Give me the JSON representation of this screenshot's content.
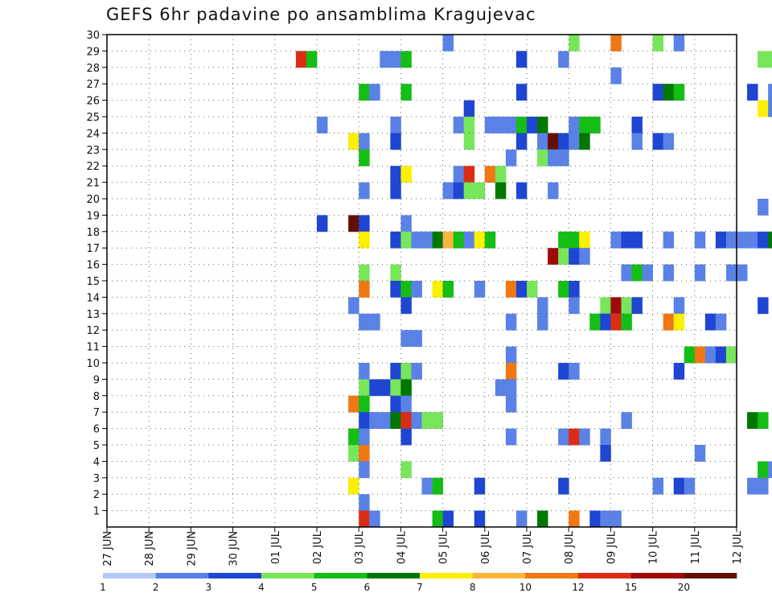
{
  "chart_data": {
    "type": "heatmap",
    "title": "GEFS 6hr padavine po ansamblima Kragujevac",
    "xlabel": "",
    "ylabel": "",
    "x_ticks": [
      "27 JUN",
      "28 JUN",
      "29 JUN",
      "30 JUN",
      "01 JUL",
      "02 JUL",
      "03 JUL",
      "04 JUL",
      "05 JUL",
      "06 JUL",
      "07 JUL",
      "08 JUL",
      "09 JUL",
      "10 JUL",
      "11 JUL",
      "12 JUL"
    ],
    "y_ticks": [
      1,
      2,
      3,
      4,
      5,
      6,
      7,
      8,
      9,
      10,
      11,
      12,
      13,
      14,
      15,
      16,
      17,
      18,
      19,
      20,
      21,
      22,
      23,
      24,
      25,
      26,
      27,
      28,
      29,
      30
    ],
    "xlim": [
      0,
      15
    ],
    "ylim": [
      0,
      30
    ],
    "x_step_hours": 6,
    "grid": true,
    "colorbar": {
      "labels": [
        "1",
        "2",
        "3",
        "4",
        "5",
        "6",
        "7",
        "8",
        "10",
        "12",
        "15",
        "20"
      ],
      "colors": [
        "#b4c8f8",
        "#5a82e6",
        "#1e46d2",
        "#78e65a",
        "#14be14",
        "#007800",
        "#faf000",
        "#fab43c",
        "#f07814",
        "#dc2d14",
        "#a00a0a",
        "#641000"
      ]
    },
    "cells": [
      [
        32,
        30,
        1
      ],
      [
        44,
        30,
        3
      ],
      [
        48,
        30,
        8
      ],
      [
        52,
        30,
        3
      ],
      [
        54,
        30,
        1
      ],
      [
        64,
        30,
        5
      ],
      [
        18,
        29,
        9
      ],
      [
        19,
        29,
        4
      ],
      [
        26,
        29,
        1
      ],
      [
        27,
        29,
        1
      ],
      [
        28,
        29,
        4
      ],
      [
        39,
        29,
        2
      ],
      [
        43,
        29,
        1
      ],
      [
        62,
        29,
        3
      ],
      [
        63,
        29,
        3
      ],
      [
        48,
        28,
        1
      ],
      [
        24,
        27,
        4
      ],
      [
        25,
        27,
        1
      ],
      [
        28,
        27,
        4
      ],
      [
        39,
        27,
        2
      ],
      [
        52,
        27,
        2
      ],
      [
        53,
        27,
        5
      ],
      [
        54,
        27,
        4
      ],
      [
        61,
        27,
        2
      ],
      [
        63,
        27,
        1
      ],
      [
        68,
        27,
        5
      ],
      [
        69,
        27,
        2
      ],
      [
        34,
        26,
        2
      ],
      [
        62,
        26,
        6
      ],
      [
        63,
        26,
        1
      ],
      [
        66,
        26,
        7
      ],
      [
        20,
        25,
        1
      ],
      [
        27,
        25,
        1
      ],
      [
        33,
        25,
        1
      ],
      [
        34,
        25,
        3
      ],
      [
        36,
        25,
        1
      ],
      [
        37,
        25,
        1
      ],
      [
        38,
        25,
        1
      ],
      [
        39,
        25,
        4
      ],
      [
        40,
        25,
        2
      ],
      [
        41,
        25,
        5
      ],
      [
        44,
        25,
        1
      ],
      [
        45,
        25,
        4
      ],
      [
        46,
        25,
        4
      ],
      [
        50,
        25,
        2
      ],
      [
        66,
        25,
        1
      ],
      [
        67,
        25,
        2
      ],
      [
        23,
        24,
        6
      ],
      [
        24,
        24,
        1
      ],
      [
        27,
        24,
        2
      ],
      [
        34,
        24,
        3
      ],
      [
        39,
        24,
        2
      ],
      [
        41,
        24,
        1
      ],
      [
        42,
        24,
        11
      ],
      [
        43,
        24,
        2
      ],
      [
        44,
        24,
        1
      ],
      [
        45,
        24,
        5
      ],
      [
        50,
        24,
        1
      ],
      [
        52,
        24,
        2
      ],
      [
        53,
        24,
        1
      ],
      [
        24,
        23,
        4
      ],
      [
        38,
        23,
        1
      ],
      [
        41,
        23,
        3
      ],
      [
        42,
        23,
        1
      ],
      [
        43,
        23,
        1
      ],
      [
        27,
        22,
        2
      ],
      [
        28,
        22,
        6
      ],
      [
        33,
        22,
        1
      ],
      [
        34,
        22,
        9
      ],
      [
        36,
        22,
        8
      ],
      [
        37,
        22,
        3
      ],
      [
        24,
        21,
        1
      ],
      [
        27,
        21,
        2
      ],
      [
        32,
        21,
        1
      ],
      [
        33,
        21,
        2
      ],
      [
        34,
        21,
        3
      ],
      [
        35,
        21,
        3
      ],
      [
        37,
        21,
        5
      ],
      [
        39,
        21,
        2
      ],
      [
        42,
        21,
        1
      ],
      [
        70,
        21,
        1
      ],
      [
        62,
        20,
        1
      ],
      [
        20,
        19,
        2
      ],
      [
        23,
        19,
        11
      ],
      [
        24,
        19,
        2
      ],
      [
        28,
        19,
        1
      ],
      [
        24,
        18,
        6
      ],
      [
        27,
        18,
        2
      ],
      [
        28,
        18,
        3
      ],
      [
        29,
        18,
        1
      ],
      [
        30,
        18,
        1
      ],
      [
        31,
        18,
        5
      ],
      [
        32,
        18,
        7
      ],
      [
        33,
        18,
        4
      ],
      [
        34,
        18,
        1
      ],
      [
        35,
        18,
        6
      ],
      [
        36,
        18,
        4
      ],
      [
        43,
        18,
        4
      ],
      [
        44,
        18,
        4
      ],
      [
        45,
        18,
        6
      ],
      [
        48,
        18,
        1
      ],
      [
        49,
        18,
        2
      ],
      [
        50,
        18,
        2
      ],
      [
        53,
        18,
        1
      ],
      [
        56,
        18,
        1
      ],
      [
        58,
        18,
        2
      ],
      [
        59,
        18,
        1
      ],
      [
        60,
        18,
        1
      ],
      [
        61,
        18,
        1
      ],
      [
        62,
        18,
        2
      ],
      [
        63,
        18,
        5
      ],
      [
        64,
        18,
        1
      ],
      [
        66,
        18,
        4
      ],
      [
        42,
        17,
        10
      ],
      [
        43,
        17,
        3
      ],
      [
        44,
        17,
        2
      ],
      [
        45,
        17,
        1
      ],
      [
        24,
        16,
        3
      ],
      [
        27,
        16,
        3
      ],
      [
        49,
        16,
        1
      ],
      [
        50,
        16,
        4
      ],
      [
        51,
        16,
        1
      ],
      [
        53,
        16,
        1
      ],
      [
        56,
        16,
        1
      ],
      [
        59,
        16,
        1
      ],
      [
        60,
        16,
        1
      ],
      [
        24,
        15,
        8
      ],
      [
        27,
        15,
        2
      ],
      [
        28,
        15,
        4
      ],
      [
        29,
        15,
        1
      ],
      [
        31,
        15,
        6
      ],
      [
        32,
        15,
        4
      ],
      [
        35,
        15,
        1
      ],
      [
        38,
        15,
        8
      ],
      [
        39,
        15,
        2
      ],
      [
        40,
        15,
        3
      ],
      [
        43,
        15,
        4
      ],
      [
        44,
        15,
        2
      ],
      [
        23,
        14,
        1
      ],
      [
        28,
        14,
        2
      ],
      [
        41,
        14,
        1
      ],
      [
        44,
        14,
        1
      ],
      [
        47,
        14,
        3
      ],
      [
        48,
        14,
        10
      ],
      [
        49,
        14,
        3
      ],
      [
        50,
        14,
        2
      ],
      [
        54,
        14,
        1
      ],
      [
        62,
        14,
        2
      ],
      [
        24,
        13,
        1
      ],
      [
        25,
        13,
        1
      ],
      [
        38,
        13,
        1
      ],
      [
        41,
        13,
        1
      ],
      [
        46,
        13,
        4
      ],
      [
        47,
        13,
        2
      ],
      [
        48,
        13,
        9
      ],
      [
        49,
        13,
        4
      ],
      [
        53,
        13,
        8
      ],
      [
        54,
        13,
        6
      ],
      [
        57,
        13,
        2
      ],
      [
        58,
        13,
        1
      ],
      [
        69,
        13,
        2
      ],
      [
        70,
        13,
        4
      ],
      [
        28,
        12,
        1
      ],
      [
        29,
        12,
        1
      ],
      [
        65,
        12,
        1
      ],
      [
        66,
        12,
        2
      ],
      [
        67,
        12,
        3
      ],
      [
        38,
        11,
        1
      ],
      [
        55,
        11,
        4
      ],
      [
        56,
        11,
        8
      ],
      [
        57,
        11,
        1
      ],
      [
        58,
        11,
        2
      ],
      [
        59,
        11,
        3
      ],
      [
        70,
        11,
        1
      ],
      [
        24,
        10,
        1
      ],
      [
        27,
        10,
        2
      ],
      [
        28,
        10,
        3
      ],
      [
        29,
        10,
        1
      ],
      [
        38,
        10,
        8
      ],
      [
        43,
        10,
        2
      ],
      [
        44,
        10,
        1
      ],
      [
        54,
        10,
        2
      ],
      [
        66,
        10,
        1
      ],
      [
        24,
        9,
        3
      ],
      [
        25,
        9,
        2
      ],
      [
        26,
        9,
        2
      ],
      [
        27,
        9,
        3
      ],
      [
        28,
        9,
        5
      ],
      [
        37,
        9,
        1
      ],
      [
        38,
        9,
        1
      ],
      [
        23,
        8,
        8
      ],
      [
        24,
        8,
        4
      ],
      [
        27,
        8,
        2
      ],
      [
        28,
        8,
        1
      ],
      [
        38,
        8,
        1
      ],
      [
        24,
        7,
        2
      ],
      [
        25,
        7,
        1
      ],
      [
        26,
        7,
        1
      ],
      [
        27,
        7,
        5
      ],
      [
        28,
        7,
        9
      ],
      [
        29,
        7,
        1
      ],
      [
        30,
        7,
        3
      ],
      [
        31,
        7,
        3
      ],
      [
        49,
        7,
        1
      ],
      [
        61,
        7,
        5
      ],
      [
        62,
        7,
        4
      ],
      [
        65,
        7,
        1
      ],
      [
        23,
        6,
        4
      ],
      [
        24,
        6,
        1
      ],
      [
        28,
        6,
        2
      ],
      [
        38,
        6,
        1
      ],
      [
        43,
        6,
        1
      ],
      [
        44,
        6,
        9
      ],
      [
        45,
        6,
        1
      ],
      [
        47,
        6,
        1
      ],
      [
        23,
        5,
        3
      ],
      [
        24,
        5,
        8
      ],
      [
        47,
        5,
        2
      ],
      [
        56,
        5,
        1
      ],
      [
        66,
        5,
        1
      ],
      [
        67,
        5,
        2
      ],
      [
        24,
        4,
        1
      ],
      [
        28,
        4,
        3
      ],
      [
        62,
        4,
        4
      ],
      [
        63,
        4,
        1
      ],
      [
        23,
        3,
        6
      ],
      [
        30,
        3,
        1
      ],
      [
        31,
        3,
        4
      ],
      [
        35,
        3,
        2
      ],
      [
        43,
        3,
        2
      ],
      [
        52,
        3,
        1
      ],
      [
        54,
        3,
        2
      ],
      [
        55,
        3,
        1
      ],
      [
        61,
        3,
        1
      ],
      [
        62,
        3,
        1
      ],
      [
        24,
        2,
        1
      ],
      [
        24,
        1,
        9
      ],
      [
        25,
        1,
        1
      ],
      [
        31,
        1,
        4
      ],
      [
        32,
        1,
        2
      ],
      [
        35,
        1,
        2
      ],
      [
        39,
        1,
        1
      ],
      [
        41,
        1,
        5
      ],
      [
        44,
        1,
        8
      ],
      [
        46,
        1,
        2
      ],
      [
        47,
        1,
        1
      ],
      [
        48,
        1,
        1
      ]
    ]
  }
}
